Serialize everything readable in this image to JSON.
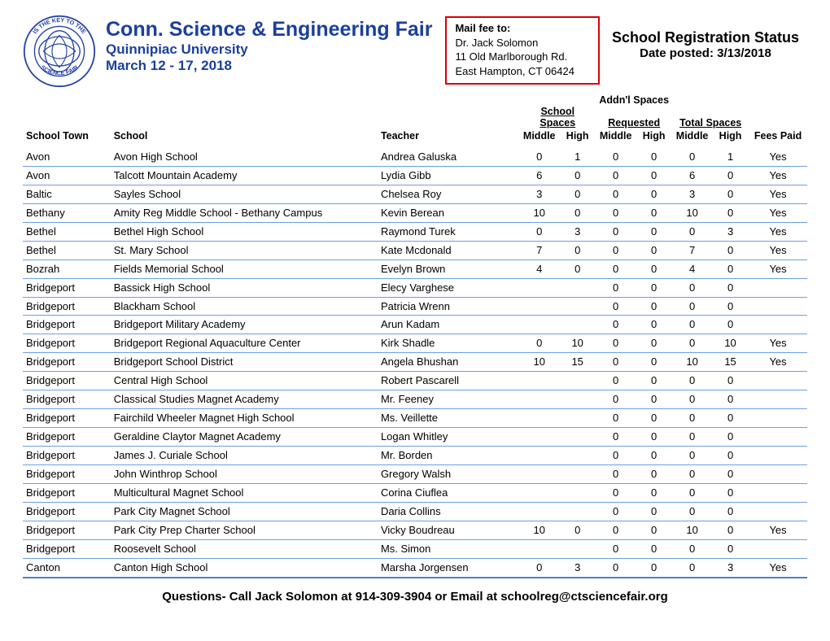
{
  "header": {
    "title": "Conn. Science & Engineering Fair",
    "subtitle": "Quinnipiac University",
    "dates": "March 12 - 17, 2018",
    "mail_label": "Mail fee to:",
    "mail_line1": "Dr. Jack Solomon",
    "mail_line2": "11 Old Marlborough Rd.",
    "mail_line3": "East Hampton, CT 06424",
    "status_title": "School Registration Status",
    "status_date": "Date posted: 3/13/2018",
    "seal_top": "IS THE KEY TO THE",
    "seal_bottom": "SCIENCE FAIR"
  },
  "columns": {
    "town": "School Town",
    "school": "School",
    "teacher": "Teacher",
    "group1": "School Spaces",
    "group2_top": "Addn'l Spaces",
    "group2": "Requested",
    "group3": "Total Spaces",
    "middle": "Middle",
    "high": "High",
    "fees": "Fees Paid"
  },
  "rows": [
    {
      "town": "Avon",
      "school": "Avon High School",
      "teacher": "Andrea Galuska",
      "sm": "0",
      "sh": "1",
      "am": "0",
      "ah": "0",
      "tm": "0",
      "th": "1",
      "fees": "Yes"
    },
    {
      "town": "Avon",
      "school": "Talcott Mountain Academy",
      "teacher": "Lydia Gibb",
      "sm": "6",
      "sh": "0",
      "am": "0",
      "ah": "0",
      "tm": "6",
      "th": "0",
      "fees": "Yes"
    },
    {
      "town": "Baltic",
      "school": "Sayles School",
      "teacher": "Chelsea Roy",
      "sm": "3",
      "sh": "0",
      "am": "0",
      "ah": "0",
      "tm": "3",
      "th": "0",
      "fees": "Yes"
    },
    {
      "town": "Bethany",
      "school": "Amity Reg Middle School - Bethany Campus",
      "teacher": "Kevin Berean",
      "sm": "10",
      "sh": "0",
      "am": "0",
      "ah": "0",
      "tm": "10",
      "th": "0",
      "fees": "Yes"
    },
    {
      "town": "Bethel",
      "school": "Bethel High School",
      "teacher": "Raymond Turek",
      "sm": "0",
      "sh": "3",
      "am": "0",
      "ah": "0",
      "tm": "0",
      "th": "3",
      "fees": "Yes"
    },
    {
      "town": "Bethel",
      "school": "St. Mary School",
      "teacher": "Kate Mcdonald",
      "sm": "7",
      "sh": "0",
      "am": "0",
      "ah": "0",
      "tm": "7",
      "th": "0",
      "fees": "Yes"
    },
    {
      "town": "Bozrah",
      "school": "Fields Memorial School",
      "teacher": "Evelyn Brown",
      "sm": "4",
      "sh": "0",
      "am": "0",
      "ah": "0",
      "tm": "4",
      "th": "0",
      "fees": "Yes"
    },
    {
      "town": "Bridgeport",
      "school": "Bassick High School",
      "teacher": "Elecy Varghese",
      "sm": "",
      "sh": "",
      "am": "0",
      "ah": "0",
      "tm": "0",
      "th": "0",
      "fees": ""
    },
    {
      "town": "Bridgeport",
      "school": "Blackham School",
      "teacher": "Patricia Wrenn",
      "sm": "",
      "sh": "",
      "am": "0",
      "ah": "0",
      "tm": "0",
      "th": "0",
      "fees": ""
    },
    {
      "town": "Bridgeport",
      "school": "Bridgeport Military Academy",
      "teacher": "Arun Kadam",
      "sm": "",
      "sh": "",
      "am": "0",
      "ah": "0",
      "tm": "0",
      "th": "0",
      "fees": ""
    },
    {
      "town": "Bridgeport",
      "school": "Bridgeport Regional Aquaculture Center",
      "teacher": "Kirk Shadle",
      "sm": "0",
      "sh": "10",
      "am": "0",
      "ah": "0",
      "tm": "0",
      "th": "10",
      "fees": "Yes"
    },
    {
      "town": "Bridgeport",
      "school": "Bridgeport School District",
      "teacher": "Angela Bhushan",
      "sm": "10",
      "sh": "15",
      "am": "0",
      "ah": "0",
      "tm": "10",
      "th": "15",
      "fees": "Yes"
    },
    {
      "town": "Bridgeport",
      "school": "Central High School",
      "teacher": "Robert Pascarell",
      "sm": "",
      "sh": "",
      "am": "0",
      "ah": "0",
      "tm": "0",
      "th": "0",
      "fees": ""
    },
    {
      "town": "Bridgeport",
      "school": "Classical Studies Magnet Academy",
      "teacher": " Mr. Feeney",
      "sm": "",
      "sh": "",
      "am": "0",
      "ah": "0",
      "tm": "0",
      "th": "0",
      "fees": ""
    },
    {
      "town": "Bridgeport",
      "school": "Fairchild Wheeler Magnet High School",
      "teacher": " Ms. Veillette",
      "sm": "",
      "sh": "",
      "am": "0",
      "ah": "0",
      "tm": "0",
      "th": "0",
      "fees": ""
    },
    {
      "town": "Bridgeport",
      "school": "Geraldine Claytor Magnet Academy",
      "teacher": "Logan Whitley",
      "sm": "",
      "sh": "",
      "am": "0",
      "ah": "0",
      "tm": "0",
      "th": "0",
      "fees": ""
    },
    {
      "town": "Bridgeport",
      "school": "James J. Curiale School",
      "teacher": " Mr. Borden",
      "sm": "",
      "sh": "",
      "am": "0",
      "ah": "0",
      "tm": "0",
      "th": "0",
      "fees": ""
    },
    {
      "town": "Bridgeport",
      "school": "John Winthrop School",
      "teacher": "Gregory Walsh",
      "sm": "",
      "sh": "",
      "am": "0",
      "ah": "0",
      "tm": "0",
      "th": "0",
      "fees": ""
    },
    {
      "town": "Bridgeport",
      "school": "Multicultural Magnet School",
      "teacher": "Corina Ciuflea",
      "sm": "",
      "sh": "",
      "am": "0",
      "ah": "0",
      "tm": "0",
      "th": "0",
      "fees": ""
    },
    {
      "town": "Bridgeport",
      "school": "Park City Magnet School",
      "teacher": "Daria Collins",
      "sm": "",
      "sh": "",
      "am": "0",
      "ah": "0",
      "tm": "0",
      "th": "0",
      "fees": ""
    },
    {
      "town": "Bridgeport",
      "school": "Park City Prep Charter School",
      "teacher": "Vicky Boudreau",
      "sm": "10",
      "sh": "0",
      "am": "0",
      "ah": "0",
      "tm": "10",
      "th": "0",
      "fees": "Yes"
    },
    {
      "town": "Bridgeport",
      "school": "Roosevelt School",
      "teacher": " Ms. Simon",
      "sm": "",
      "sh": "",
      "am": "0",
      "ah": "0",
      "tm": "0",
      "th": "0",
      "fees": ""
    },
    {
      "town": "Canton",
      "school": "Canton High School",
      "teacher": "Marsha Jorgensen",
      "sm": "0",
      "sh": "3",
      "am": "0",
      "ah": "0",
      "tm": "0",
      "th": "3",
      "fees": "Yes"
    }
  ],
  "footer": "Questions- Call Jack Solomon at 914-309-3904 or Email at schoolreg@ctsciencefair.org",
  "style": {
    "title_color": "#1b3f9c",
    "row_border_color": "#6aa0e6",
    "mailbox_border_color": "#d90000",
    "seal_blue": "#2541a3"
  }
}
